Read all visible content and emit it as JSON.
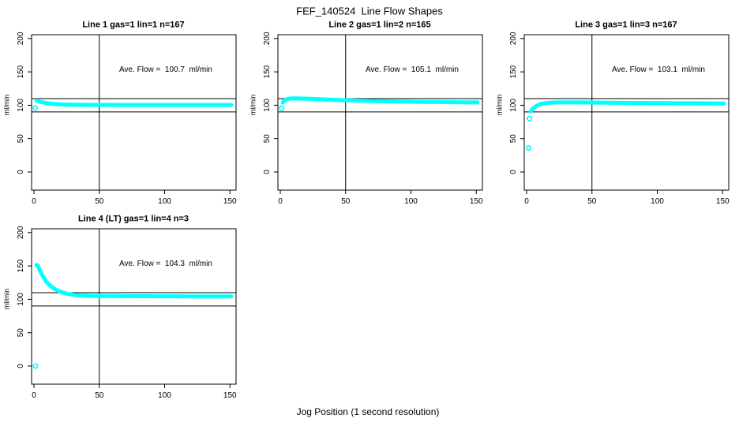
{
  "page": {
    "title": "FEF_140524  Line Flow Shapes",
    "xlabel": "Jog Position (1 second resolution)"
  },
  "chart_data": {
    "type": "scatter",
    "title": "FEF_140524  Line Flow Shapes",
    "xlabel": "Jog Position (1 second resolution)",
    "ylabel": "ml/min",
    "point_color": "#00FFFF",
    "line_color": "#000000",
    "x_ticks": [
      0,
      50,
      100,
      150
    ],
    "y_ticks": [
      0,
      50,
      100,
      150,
      200
    ],
    "xlim": [
      -2,
      155
    ],
    "ylim": [
      -27,
      206
    ],
    "grid": false,
    "ref_lines_h": [
      90,
      110
    ],
    "ref_line_v": 50,
    "plots": [
      {
        "title": "Line 1 gas=1 lin=1 n=167",
        "ave_flow": 100.7,
        "annotation": "Ave. Flow =  100.7  ml/min",
        "outliers": [
          [
            1,
            96
          ]
        ],
        "points": [
          [
            2,
            107.0
          ],
          [
            3,
            106.3
          ],
          [
            4,
            105.7
          ],
          [
            5,
            105.1
          ],
          [
            6,
            104.6
          ],
          [
            8,
            103.8
          ],
          [
            10,
            103.1
          ],
          [
            12,
            102.6
          ],
          [
            14,
            102.1
          ],
          [
            16,
            101.8
          ],
          [
            18,
            101.5
          ],
          [
            20,
            101.3
          ],
          [
            25,
            100.9
          ],
          [
            30,
            100.7
          ],
          [
            35,
            100.6
          ],
          [
            40,
            100.6
          ],
          [
            45,
            100.5
          ],
          [
            50,
            100.5
          ],
          [
            55,
            100.5
          ],
          [
            60,
            100.5
          ],
          [
            65,
            100.4
          ],
          [
            70,
            100.4
          ],
          [
            75,
            100.4
          ],
          [
            80,
            100.4
          ],
          [
            85,
            100.4
          ],
          [
            90,
            100.4
          ],
          [
            95,
            100.4
          ],
          [
            100,
            100.4
          ],
          [
            105,
            100.4
          ],
          [
            110,
            100.4
          ],
          [
            115,
            100.4
          ],
          [
            120,
            100.4
          ],
          [
            125,
            100.4
          ],
          [
            130,
            100.4
          ],
          [
            135,
            100.4
          ],
          [
            140,
            100.4
          ],
          [
            145,
            100.4
          ],
          [
            148,
            100.4
          ],
          [
            151,
            100.4
          ]
        ]
      },
      {
        "title": "Line 2 gas=1 lin=2 n=165",
        "ave_flow": 105.1,
        "annotation": "Ave. Flow =  105.1  ml/min",
        "outliers": [
          [
            1,
            95.5
          ]
        ],
        "points": [
          [
            2,
            104.0
          ],
          [
            3,
            106.5
          ],
          [
            4,
            108.0
          ],
          [
            5,
            109.0
          ],
          [
            6,
            109.5
          ],
          [
            8,
            110.0
          ],
          [
            10,
            110.2
          ],
          [
            12,
            110.2
          ],
          [
            14,
            110.1
          ],
          [
            16,
            110.0
          ],
          [
            18,
            109.9
          ],
          [
            20,
            109.8
          ],
          [
            25,
            109.4
          ],
          [
            30,
            109.0
          ],
          [
            35,
            108.6
          ],
          [
            40,
            108.2
          ],
          [
            45,
            107.8
          ],
          [
            50,
            107.5
          ],
          [
            55,
            107.2
          ],
          [
            60,
            106.9
          ],
          [
            65,
            106.6
          ],
          [
            70,
            106.4
          ],
          [
            75,
            106.2
          ],
          [
            80,
            106.0
          ],
          [
            85,
            105.8
          ],
          [
            90,
            105.6
          ],
          [
            95,
            105.4
          ],
          [
            100,
            105.3
          ],
          [
            105,
            105.1
          ],
          [
            110,
            105.0
          ],
          [
            115,
            104.9
          ],
          [
            120,
            104.8
          ],
          [
            125,
            104.7
          ],
          [
            130,
            104.6
          ],
          [
            135,
            104.5
          ],
          [
            140,
            104.4
          ],
          [
            145,
            104.3
          ],
          [
            148,
            104.2
          ],
          [
            151,
            104.2
          ]
        ]
      },
      {
        "title": "Line 3 gas=1 lin=3 n=167",
        "ave_flow": 103.1,
        "annotation": "Ave. Flow =  103.1  ml/min",
        "outliers": [
          [
            1.5,
            36
          ],
          [
            2.2,
            80
          ]
        ],
        "points": [
          [
            3,
            90.5
          ],
          [
            4,
            93.0
          ],
          [
            5,
            95.0
          ],
          [
            6,
            96.8
          ],
          [
            7,
            98.2
          ],
          [
            8,
            99.4
          ],
          [
            10,
            101.2
          ],
          [
            12,
            102.3
          ],
          [
            14,
            103.0
          ],
          [
            16,
            103.5
          ],
          [
            18,
            103.8
          ],
          [
            20,
            104.0
          ],
          [
            25,
            104.2
          ],
          [
            30,
            104.3
          ],
          [
            35,
            104.3
          ],
          [
            40,
            104.2
          ],
          [
            45,
            104.1
          ],
          [
            50,
            104.0
          ],
          [
            55,
            103.9
          ],
          [
            60,
            103.8
          ],
          [
            65,
            103.7
          ],
          [
            70,
            103.6
          ],
          [
            75,
            103.5
          ],
          [
            80,
            103.4
          ],
          [
            85,
            103.3
          ],
          [
            90,
            103.3
          ],
          [
            95,
            103.2
          ],
          [
            100,
            103.2
          ],
          [
            105,
            103.1
          ],
          [
            110,
            103.1
          ],
          [
            115,
            103.0
          ],
          [
            120,
            103.0
          ],
          [
            125,
            102.9
          ],
          [
            130,
            102.9
          ],
          [
            135,
            102.8
          ],
          [
            140,
            102.8
          ],
          [
            145,
            102.7
          ],
          [
            148,
            102.7
          ],
          [
            151,
            102.6
          ]
        ]
      },
      {
        "title": "Line 4 (LT) gas=1 lin=4 n=3",
        "ave_flow": 104.3,
        "annotation": "Ave. Flow =  104.3  ml/min",
        "outliers": [
          [
            1.2,
            0
          ]
        ],
        "points": [
          [
            2,
            151.5
          ],
          [
            3,
            150.6
          ],
          [
            4,
            145.7
          ],
          [
            5,
            141.4
          ],
          [
            6,
            137.5
          ],
          [
            7,
            133.9
          ],
          [
            8,
            130.7
          ],
          [
            9,
            127.7
          ],
          [
            10,
            125.1
          ],
          [
            12,
            121.5
          ],
          [
            14,
            118.1
          ],
          [
            16,
            115.4
          ],
          [
            18,
            113.3
          ],
          [
            20,
            111.5
          ],
          [
            22,
            110.2
          ],
          [
            24,
            109.1
          ],
          [
            26,
            108.2
          ],
          [
            28,
            107.5
          ],
          [
            30,
            106.9
          ],
          [
            35,
            105.9
          ],
          [
            40,
            105.4
          ],
          [
            45,
            105.1
          ],
          [
            50,
            105.0
          ],
          [
            55,
            104.9
          ],
          [
            60,
            104.8
          ],
          [
            65,
            104.8
          ],
          [
            70,
            104.7
          ],
          [
            75,
            104.7
          ],
          [
            80,
            104.6
          ],
          [
            85,
            104.6
          ],
          [
            90,
            104.6
          ],
          [
            95,
            104.5
          ],
          [
            100,
            104.5
          ],
          [
            105,
            104.5
          ],
          [
            110,
            104.5
          ],
          [
            115,
            104.4
          ],
          [
            120,
            104.4
          ],
          [
            125,
            104.4
          ],
          [
            130,
            104.4
          ],
          [
            135,
            104.3
          ],
          [
            140,
            104.3
          ],
          [
            145,
            104.3
          ],
          [
            148,
            104.3
          ],
          [
            151,
            104.3
          ]
        ]
      }
    ]
  }
}
